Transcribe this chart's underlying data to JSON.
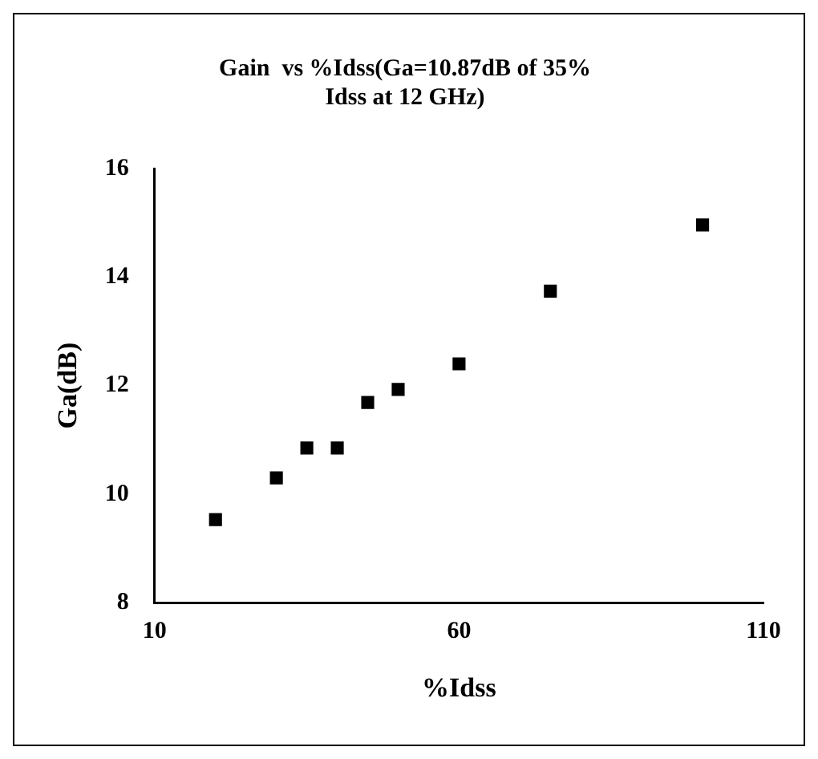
{
  "chart_data": {
    "type": "scatter",
    "title": [
      "Gain  vs %Idss(Ga=10.87dB of 35%",
      "Idss at 12 GHz)"
    ],
    "xlabel": "%Idss",
    "ylabel": "Ga(dB)",
    "series": [
      {
        "color": "#000000",
        "x": [
          20,
          30,
          35,
          40,
          45,
          50,
          60,
          75,
          100
        ],
        "values": [
          9.53,
          10.3,
          10.85,
          10.85,
          11.69,
          11.93,
          12.4,
          13.74,
          14.96
        ]
      }
    ],
    "xlim": [
      10,
      110
    ],
    "xticks": [
      10,
      60,
      110
    ],
    "ylim": [
      8,
      16
    ],
    "yticks": [
      8,
      10,
      12,
      14,
      16
    ],
    "grid": false,
    "legend": false,
    "marker": "square"
  }
}
